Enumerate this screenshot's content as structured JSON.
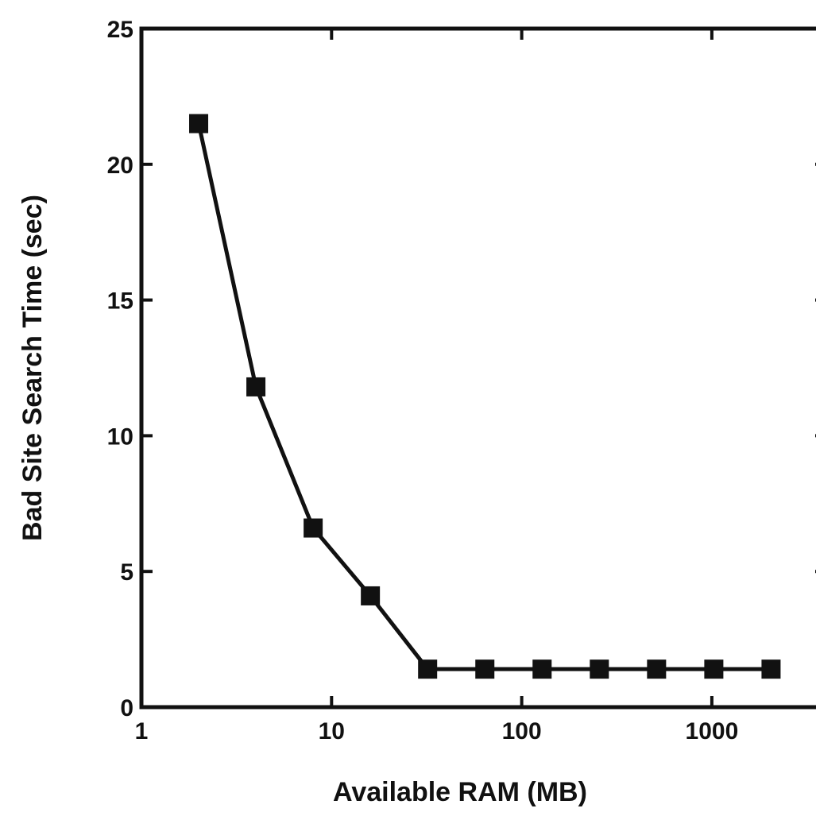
{
  "chart_data": {
    "type": "line",
    "title": "",
    "xlabel": "Available RAM (MB)",
    "ylabel": "Bad Site Search Time (sec)",
    "x_scale": "log",
    "xlim": [
      1,
      4000
    ],
    "ylim": [
      0,
      25
    ],
    "x_ticks": [
      {
        "value": 1,
        "label": "1"
      },
      {
        "value": 10,
        "label": "10"
      },
      {
        "value": 100,
        "label": "100"
      },
      {
        "value": 1000,
        "label": "1000"
      }
    ],
    "y_ticks": [
      {
        "value": 0,
        "label": "0"
      },
      {
        "value": 5,
        "label": "5"
      },
      {
        "value": 10,
        "label": "10"
      },
      {
        "value": 15,
        "label": "15"
      },
      {
        "value": 20,
        "label": "20"
      },
      {
        "value": 25,
        "label": "25"
      }
    ],
    "grid": false,
    "legend": "none",
    "series": [
      {
        "marker": "square",
        "color": "#111111",
        "x": [
          2,
          4,
          8,
          16,
          32,
          64,
          128,
          256,
          512,
          1024,
          2048
        ],
        "y": [
          21.5,
          11.8,
          6.6,
          4.1,
          1.4,
          1.4,
          1.4,
          1.4,
          1.4,
          1.4,
          1.4
        ]
      }
    ]
  }
}
